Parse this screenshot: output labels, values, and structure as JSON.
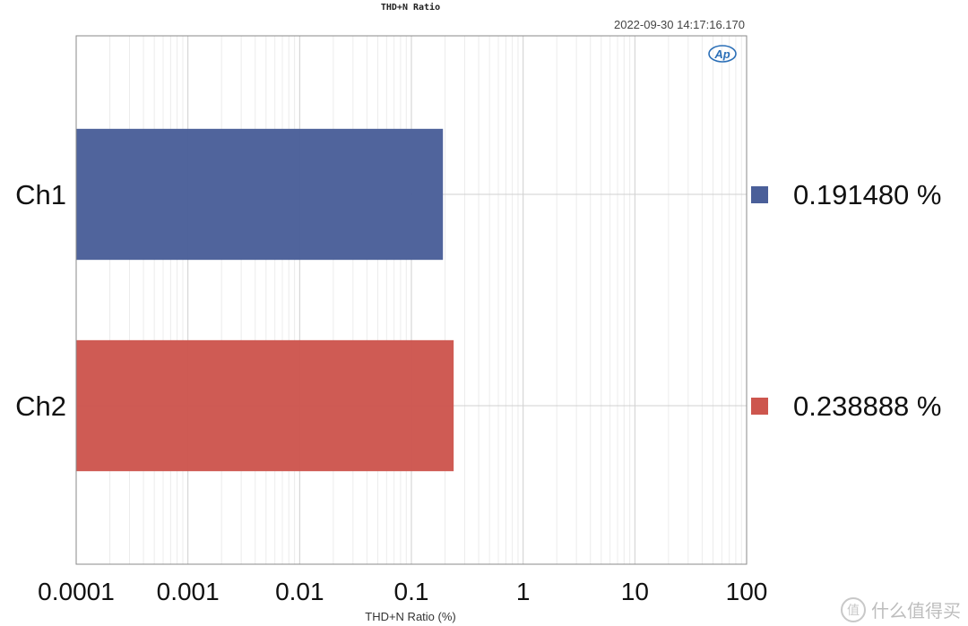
{
  "header": {
    "title": "THD+N Ratio",
    "timestamp": "2022-09-30 14:17:16.170",
    "logo_text": "Ap"
  },
  "watermark": {
    "icon_text": "值",
    "text": "什么值得买"
  },
  "chart_data": {
    "type": "bar",
    "orientation": "horizontal",
    "title": "THD+N Ratio",
    "xlabel": "THD+N Ratio (%)",
    "ylabel": "",
    "x_scale": "log",
    "xlim": [
      0.0001,
      100
    ],
    "x_ticks": [
      "0.0001",
      "0.001",
      "0.01",
      "0.1",
      "1",
      "10",
      "100"
    ],
    "categories": [
      "Ch1",
      "Ch2"
    ],
    "values": [
      0.19148,
      0.238888
    ],
    "value_labels": [
      "0.191480 %",
      "0.238888 %"
    ],
    "colors": [
      "#4a5f99",
      "#cd564e"
    ],
    "grid": true,
    "legend": "right"
  }
}
